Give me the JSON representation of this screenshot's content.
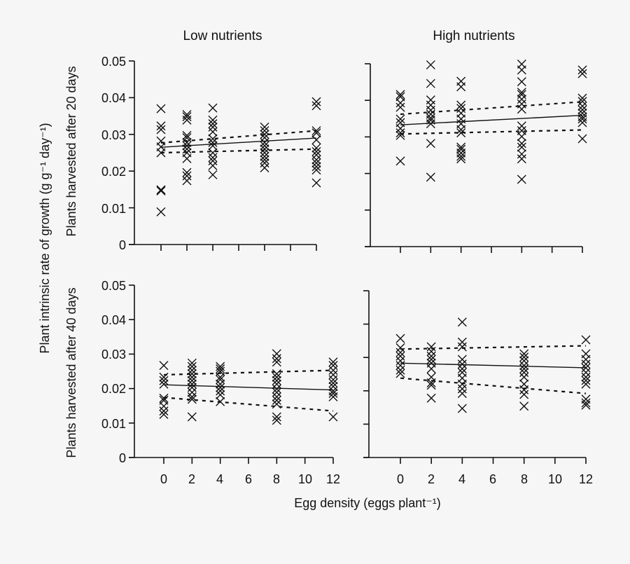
{
  "chart_data": {
    "type": "scatter",
    "ylabel": "Plant intrinsic rate of growth (g g⁻¹ day⁻¹)",
    "xlabel": "Egg density (eggs plant⁻¹)",
    "column_titles": [
      "Low nutrients",
      "High nutrients"
    ],
    "row_labels": [
      "Plants harvested after 20 days",
      "Plants harvested after 40 days"
    ],
    "x_ticks": [
      "0",
      "2",
      "4",
      "6",
      "8",
      "10",
      "12"
    ],
    "y_ticks": [
      "0",
      "0.01",
      "0.02",
      "0.03",
      "0.04",
      "0.05"
    ],
    "xlim": [
      -2,
      12
    ],
    "ylim": [
      0,
      0.05
    ],
    "grid": false,
    "marker": "x",
    "panels": [
      {
        "column": "Low nutrients",
        "row": "Plants harvested after 20 days",
        "points": {
          "0": [
            0.037,
            0.0323,
            0.0313,
            0.0282,
            0.0266,
            0.025,
            0.0149,
            0.0146,
            0.0089
          ],
          "2": [
            0.0354,
            0.0348,
            0.0339,
            0.0297,
            0.0291,
            0.0278,
            0.0269,
            0.026,
            0.025,
            0.0234,
            0.0196,
            0.0187,
            0.0174
          ],
          "4": [
            0.0372,
            0.0339,
            0.0329,
            0.032,
            0.0307,
            0.0288,
            0.0278,
            0.0269,
            0.025,
            0.0237,
            0.0228,
            0.0215,
            0.019
          ],
          "8": [
            0.032,
            0.031,
            0.03,
            0.0291,
            0.0278,
            0.0269,
            0.026,
            0.025,
            0.024,
            0.0231,
            0.0222,
            0.0209
          ],
          "12": [
            0.0389,
            0.0378,
            0.031,
            0.0304,
            0.0285,
            0.0263,
            0.0253,
            0.0244,
            0.0231,
            0.0222,
            0.0212,
            0.0203,
            0.0168
          ]
        },
        "fit": {
          "x": [
            0,
            12
          ],
          "mean": [
            0.0265,
            0.029
          ],
          "upper": [
            0.0277,
            0.031
          ],
          "lower": [
            0.025,
            0.026
          ]
        }
      },
      {
        "column": "High nutrients",
        "row": "Plants harvested after 20 days",
        "points": {
          "0": [
            0.0416,
            0.041,
            0.0393,
            0.0381,
            0.0349,
            0.0339,
            0.0323,
            0.0311,
            0.0304,
            0.0234
          ],
          "2": [
            0.0497,
            0.0446,
            0.0401,
            0.0387,
            0.0373,
            0.0362,
            0.0352,
            0.0346,
            0.0336,
            0.0282,
            0.019
          ],
          "4": [
            0.0452,
            0.0437,
            0.0387,
            0.0378,
            0.0365,
            0.0349,
            0.0336,
            0.032,
            0.0311,
            0.0272,
            0.0266,
            0.0256,
            0.0247,
            0.024
          ],
          "8": [
            0.0499,
            0.0483,
            0.0451,
            0.0422,
            0.0416,
            0.0403,
            0.039,
            0.0376,
            0.033,
            0.0317,
            0.0301,
            0.0282,
            0.0272,
            0.0253,
            0.024,
            0.0184
          ],
          "12": [
            0.0483,
            0.0473,
            0.0406,
            0.0397,
            0.0384,
            0.0374,
            0.0365,
            0.0355,
            0.0349,
            0.0339,
            0.0295
          ]
        },
        "fit": {
          "x": [
            0,
            12
          ],
          "mean": [
            0.0333,
            0.0359
          ],
          "upper": [
            0.0362,
            0.0396
          ],
          "lower": [
            0.0308,
            0.0319
          ]
        }
      },
      {
        "column": "Low nutrients",
        "row": "Plants harvested after 40 days",
        "points": {
          "0": [
            0.0267,
            0.0233,
            0.0223,
            0.0213,
            0.0172,
            0.0166,
            0.0149,
            0.0135,
            0.0125
          ],
          "2": [
            0.0274,
            0.0264,
            0.0253,
            0.0243,
            0.0233,
            0.0223,
            0.0213,
            0.0203,
            0.0189,
            0.0176,
            0.0169,
            0.0118
          ],
          "4": [
            0.0264,
            0.0257,
            0.025,
            0.0233,
            0.0226,
            0.0213,
            0.0203,
            0.0193,
            0.0182,
            0.0162
          ],
          "8": [
            0.0301,
            0.0287,
            0.0277,
            0.0243,
            0.0233,
            0.0223,
            0.0213,
            0.0199,
            0.0189,
            0.0176,
            0.0166,
            0.0155,
            0.0118,
            0.0108
          ],
          "12": [
            0.0277,
            0.0267,
            0.0253,
            0.024,
            0.0226,
            0.0216,
            0.0206,
            0.0193,
            0.0186,
            0.0176,
            0.0118
          ]
        },
        "fit": {
          "x": [
            0,
            12
          ],
          "mean": [
            0.0211,
            0.0196
          ],
          "upper": [
            0.024,
            0.0253
          ],
          "lower": [
            0.0174,
            0.0135
          ]
        }
      },
      {
        "column": "High nutrients",
        "row": "Plants harvested after 40 days",
        "points": {
          "0": [
            0.0357,
            0.0329,
            0.0315,
            0.0304,
            0.029,
            0.0276,
            0.0262,
            0.0252
          ],
          "2": [
            0.0332,
            0.0318,
            0.0304,
            0.0294,
            0.0283,
            0.0266,
            0.0241,
            0.0224,
            0.0217,
            0.0178
          ],
          "4": [
            0.0406,
            0.0346,
            0.0332,
            0.0294,
            0.028,
            0.0266,
            0.0255,
            0.0238,
            0.022,
            0.0206,
            0.0192,
            0.0147
          ],
          "8": [
            0.0311,
            0.0301,
            0.029,
            0.0276,
            0.0266,
            0.0255,
            0.0241,
            0.022,
            0.0203,
            0.0189,
            0.0154
          ],
          "12": [
            0.0353,
            0.0311,
            0.0294,
            0.028,
            0.0269,
            0.0255,
            0.0241,
            0.0231,
            0.022,
            0.0175,
            0.0164,
            0.0157
          ]
        },
        "fit": {
          "x": [
            0,
            12
          ],
          "mean": [
            0.0283,
            0.0269
          ],
          "upper": [
            0.0325,
            0.0335
          ],
          "lower": [
            0.0238,
            0.0192
          ]
        }
      }
    ]
  }
}
